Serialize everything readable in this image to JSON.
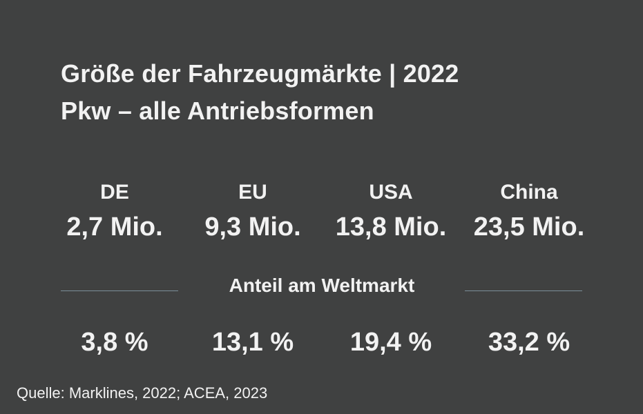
{
  "title": {
    "line1": "Größe der Fahrzeugmärkte | 2022",
    "line2": "Pkw – alle Antriebsformen"
  },
  "share_heading": "Anteil am Weltmarkt",
  "source": "Quelle: Marklines, 2022; ACEA, 2023",
  "chart_data": {
    "type": "table",
    "categories": [
      "DE",
      "EU",
      "USA",
      "China"
    ],
    "series": [
      {
        "values": [
          2.7,
          9.3,
          13.8,
          23.5
        ],
        "labels": [
          "2,7 Mio.",
          "9,3 Mio.",
          "13,8 Mio.",
          "23,5 Mio."
        ]
      },
      {
        "name": "Anteil am Weltmarkt",
        "values": [
          3.8,
          13.1,
          19.4,
          33.2
        ],
        "labels": [
          "3,8 %",
          "13,1 %",
          "19,4 %",
          "33,2 %"
        ]
      }
    ]
  },
  "colors": {
    "background": "#404141",
    "text": "#f2f2f2",
    "divider": "#7b8f9a"
  }
}
